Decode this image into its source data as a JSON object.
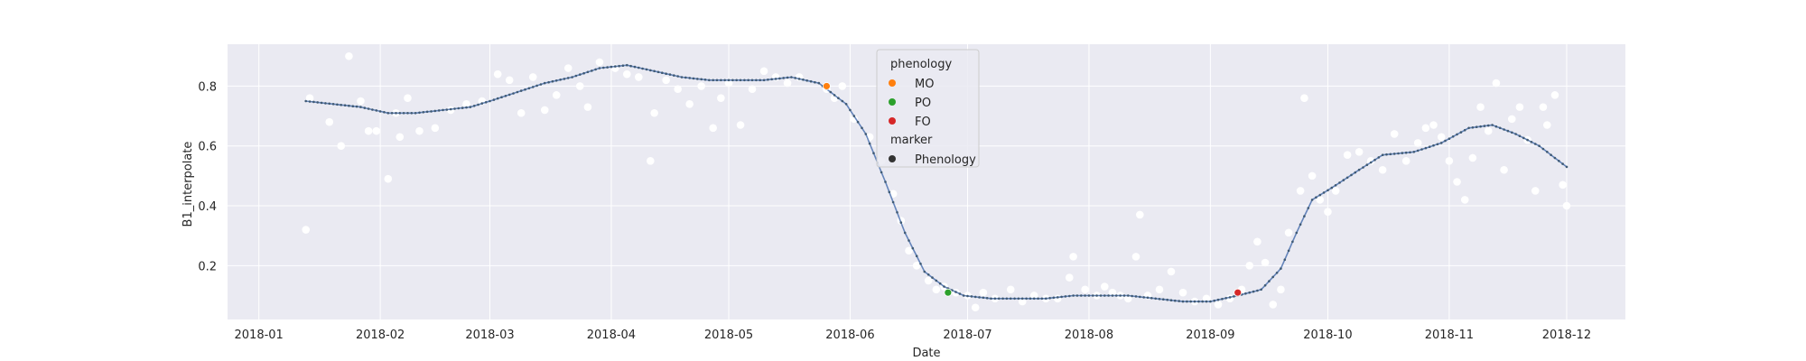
{
  "chart_data": {
    "type": "scatter",
    "title": "",
    "xlabel": "Date",
    "ylabel": "B1_interpolate",
    "xlim": [
      "2017-12-24",
      "2018-12-16"
    ],
    "ylim": [
      0.02,
      0.94
    ],
    "x_ticks": [
      "2018-01",
      "2018-02",
      "2018-03",
      "2018-04",
      "2018-05",
      "2018-06",
      "2018-07",
      "2018-08",
      "2018-09",
      "2018-10",
      "2018-11",
      "2018-12"
    ],
    "y_ticks": [
      0.2,
      0.4,
      0.6,
      0.8
    ],
    "grid": true,
    "legend": {
      "placement": "upper-center",
      "sections": [
        {
          "title": "phenology",
          "items": [
            {
              "label": "MO",
              "color": "#ff7f0e"
            },
            {
              "label": "PO",
              "color": "#2ca02c"
            },
            {
              "label": "FO",
              "color": "#d62728"
            }
          ]
        },
        {
          "title": "marker",
          "items": [
            {
              "label": "Phenology",
              "color": "#333333"
            }
          ]
        }
      ]
    },
    "colors": {
      "background": "#eaeaf2",
      "grid": "#ffffff",
      "observations": "#ffffff",
      "interpolated_line": "#4c72b0",
      "interpolated_points": "#3f5a74"
    },
    "series": [
      {
        "role": "raw observations",
        "points": [
          [
            "2018-01-13",
            0.32
          ],
          [
            "2018-01-14",
            0.76
          ],
          [
            "2018-01-19",
            0.68
          ],
          [
            "2018-01-22",
            0.6
          ],
          [
            "2018-01-24",
            0.9
          ],
          [
            "2018-01-27",
            0.75
          ],
          [
            "2018-01-29",
            0.65
          ],
          [
            "2018-01-31",
            0.65
          ],
          [
            "2018-02-03",
            0.49
          ],
          [
            "2018-02-05",
            0.71
          ],
          [
            "2018-02-06",
            0.63
          ],
          [
            "2018-02-08",
            0.76
          ],
          [
            "2018-02-11",
            0.65
          ],
          [
            "2018-02-15",
            0.66
          ],
          [
            "2018-02-19",
            0.72
          ],
          [
            "2018-02-23",
            0.74
          ],
          [
            "2018-02-27",
            0.75
          ],
          [
            "2018-03-03",
            0.84
          ],
          [
            "2018-03-06",
            0.82
          ],
          [
            "2018-03-09",
            0.71
          ],
          [
            "2018-03-12",
            0.83
          ],
          [
            "2018-03-15",
            0.72
          ],
          [
            "2018-03-18",
            0.77
          ],
          [
            "2018-03-21",
            0.86
          ],
          [
            "2018-03-24",
            0.8
          ],
          [
            "2018-03-26",
            0.73
          ],
          [
            "2018-03-29",
            0.88
          ],
          [
            "2018-04-02",
            0.86
          ],
          [
            "2018-04-05",
            0.84
          ],
          [
            "2018-04-08",
            0.83
          ],
          [
            "2018-04-11",
            0.55
          ],
          [
            "2018-04-12",
            0.71
          ],
          [
            "2018-04-15",
            0.82
          ],
          [
            "2018-04-18",
            0.79
          ],
          [
            "2018-04-21",
            0.74
          ],
          [
            "2018-04-24",
            0.8
          ],
          [
            "2018-04-27",
            0.66
          ],
          [
            "2018-04-29",
            0.76
          ],
          [
            "2018-05-01",
            0.81
          ],
          [
            "2018-05-04",
            0.67
          ],
          [
            "2018-05-07",
            0.79
          ],
          [
            "2018-05-10",
            0.85
          ],
          [
            "2018-05-13",
            0.83
          ],
          [
            "2018-05-16",
            0.81
          ],
          [
            "2018-05-19",
            0.83
          ],
          [
            "2018-05-26",
            0.79
          ],
          [
            "2018-05-28",
            0.76
          ],
          [
            "2018-05-30",
            0.8
          ],
          [
            "2018-06-02",
            0.69
          ],
          [
            "2018-06-06",
            0.63
          ],
          [
            "2018-06-09",
            0.55
          ],
          [
            "2018-06-12",
            0.44
          ],
          [
            "2018-06-14",
            0.35
          ],
          [
            "2018-06-16",
            0.25
          ],
          [
            "2018-06-18",
            0.2
          ],
          [
            "2018-06-21",
            0.15
          ],
          [
            "2018-06-23",
            0.12
          ],
          [
            "2018-06-25",
            0.13
          ],
          [
            "2018-06-28",
            0.11
          ],
          [
            "2018-07-01",
            0.1
          ],
          [
            "2018-07-03",
            0.06
          ],
          [
            "2018-07-05",
            0.11
          ],
          [
            "2018-07-08",
            0.09
          ],
          [
            "2018-07-12",
            0.12
          ],
          [
            "2018-07-15",
            0.08
          ],
          [
            "2018-07-18",
            0.1
          ],
          [
            "2018-07-21",
            0.09
          ],
          [
            "2018-07-24",
            0.09
          ],
          [
            "2018-07-27",
            0.16
          ],
          [
            "2018-07-28",
            0.23
          ],
          [
            "2018-07-31",
            0.12
          ],
          [
            "2018-08-03",
            0.1
          ],
          [
            "2018-08-05",
            0.13
          ],
          [
            "2018-08-07",
            0.11
          ],
          [
            "2018-08-09",
            0.1
          ],
          [
            "2018-08-11",
            0.09
          ],
          [
            "2018-08-13",
            0.23
          ],
          [
            "2018-08-14",
            0.37
          ],
          [
            "2018-08-16",
            0.1
          ],
          [
            "2018-08-19",
            0.12
          ],
          [
            "2018-08-22",
            0.18
          ],
          [
            "2018-08-25",
            0.11
          ],
          [
            "2018-08-28",
            0.08
          ],
          [
            "2018-08-31",
            0.09
          ],
          [
            "2018-09-03",
            0.07
          ],
          [
            "2018-09-06",
            0.09
          ],
          [
            "2018-09-09",
            0.12
          ],
          [
            "2018-09-11",
            0.2
          ],
          [
            "2018-09-13",
            0.28
          ],
          [
            "2018-09-15",
            0.21
          ],
          [
            "2018-09-17",
            0.07
          ],
          [
            "2018-09-19",
            0.12
          ],
          [
            "2018-09-21",
            0.31
          ],
          [
            "2018-09-24",
            0.45
          ],
          [
            "2018-09-25",
            0.76
          ],
          [
            "2018-09-27",
            0.5
          ],
          [
            "2018-09-29",
            0.42
          ],
          [
            "2018-10-01",
            0.38
          ],
          [
            "2018-10-03",
            0.45
          ],
          [
            "2018-10-06",
            0.57
          ],
          [
            "2018-10-09",
            0.58
          ],
          [
            "2018-10-12",
            0.55
          ],
          [
            "2018-10-15",
            0.52
          ],
          [
            "2018-10-18",
            0.64
          ],
          [
            "2018-10-21",
            0.55
          ],
          [
            "2018-10-24",
            0.61
          ],
          [
            "2018-10-26",
            0.66
          ],
          [
            "2018-10-28",
            0.67
          ],
          [
            "2018-10-30",
            0.63
          ],
          [
            "2018-11-01",
            0.55
          ],
          [
            "2018-11-03",
            0.48
          ],
          [
            "2018-11-05",
            0.42
          ],
          [
            "2018-11-07",
            0.56
          ],
          [
            "2018-11-09",
            0.73
          ],
          [
            "2018-11-11",
            0.65
          ],
          [
            "2018-11-13",
            0.81
          ],
          [
            "2018-11-15",
            0.52
          ],
          [
            "2018-11-17",
            0.69
          ],
          [
            "2018-11-19",
            0.73
          ],
          [
            "2018-11-21",
            0.62
          ],
          [
            "2018-11-23",
            0.45
          ],
          [
            "2018-11-25",
            0.73
          ],
          [
            "2018-11-26",
            0.67
          ],
          [
            "2018-11-28",
            0.77
          ],
          [
            "2018-11-30",
            0.47
          ],
          [
            "2018-12-01",
            0.4
          ]
        ]
      },
      {
        "role": "interpolated curve",
        "points": [
          [
            "2018-01-13",
            0.75
          ],
          [
            "2018-01-20",
            0.74
          ],
          [
            "2018-01-27",
            0.73
          ],
          [
            "2018-02-03",
            0.71
          ],
          [
            "2018-02-10",
            0.71
          ],
          [
            "2018-02-17",
            0.72
          ],
          [
            "2018-02-24",
            0.73
          ],
          [
            "2018-03-01",
            0.75
          ],
          [
            "2018-03-08",
            0.78
          ],
          [
            "2018-03-15",
            0.81
          ],
          [
            "2018-03-22",
            0.83
          ],
          [
            "2018-03-29",
            0.86
          ],
          [
            "2018-04-05",
            0.87
          ],
          [
            "2018-04-12",
            0.85
          ],
          [
            "2018-04-19",
            0.83
          ],
          [
            "2018-04-26",
            0.82
          ],
          [
            "2018-05-03",
            0.82
          ],
          [
            "2018-05-10",
            0.82
          ],
          [
            "2018-05-17",
            0.83
          ],
          [
            "2018-05-24",
            0.81
          ],
          [
            "2018-05-31",
            0.74
          ],
          [
            "2018-06-05",
            0.64
          ],
          [
            "2018-06-10",
            0.48
          ],
          [
            "2018-06-15",
            0.31
          ],
          [
            "2018-06-20",
            0.18
          ],
          [
            "2018-06-25",
            0.13
          ],
          [
            "2018-06-30",
            0.1
          ],
          [
            "2018-07-07",
            0.09
          ],
          [
            "2018-07-14",
            0.09
          ],
          [
            "2018-07-21",
            0.09
          ],
          [
            "2018-07-28",
            0.1
          ],
          [
            "2018-08-04",
            0.1
          ],
          [
            "2018-08-11",
            0.1
          ],
          [
            "2018-08-18",
            0.09
          ],
          [
            "2018-08-25",
            0.08
          ],
          [
            "2018-09-01",
            0.08
          ],
          [
            "2018-09-08",
            0.1
          ],
          [
            "2018-09-14",
            0.12
          ],
          [
            "2018-09-19",
            0.19
          ],
          [
            "2018-09-23",
            0.31
          ],
          [
            "2018-09-27",
            0.42
          ],
          [
            "2018-10-02",
            0.46
          ],
          [
            "2018-10-09",
            0.52
          ],
          [
            "2018-10-15",
            0.57
          ],
          [
            "2018-10-23",
            0.58
          ],
          [
            "2018-10-30",
            0.61
          ],
          [
            "2018-11-06",
            0.66
          ],
          [
            "2018-11-12",
            0.67
          ],
          [
            "2018-11-18",
            0.64
          ],
          [
            "2018-11-24",
            0.6
          ],
          [
            "2018-12-01",
            0.53
          ]
        ]
      },
      {
        "role": "phenology markers",
        "points": [
          {
            "label": "MO",
            "x": "2018-05-26",
            "y": 0.8,
            "color": "#ff7f0e"
          },
          {
            "label": "PO",
            "x": "2018-06-26",
            "y": 0.11,
            "color": "#2ca02c"
          },
          {
            "label": "FO",
            "x": "2018-09-08",
            "y": 0.11,
            "color": "#d62728"
          }
        ]
      }
    ]
  }
}
